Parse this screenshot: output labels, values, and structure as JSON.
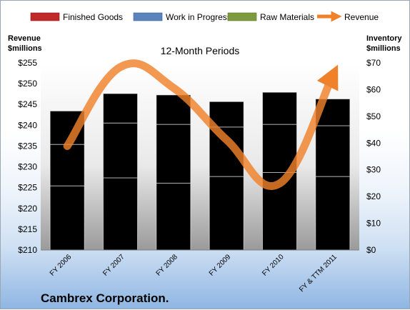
{
  "chart_data": {
    "type": "bar",
    "stacked": true,
    "title": "12-Month Periods",
    "company": "Cambrex Corporation.",
    "categories": [
      "FY 2006",
      "FY 2007",
      "FY 2008",
      "FY 2009",
      "FY 2010",
      "FY & TTM 2011"
    ],
    "left_axis": {
      "label_line1": "Revenue",
      "label_line2": "$millions",
      "range": [
        210,
        255
      ],
      "ticks": [
        "$210",
        "$215",
        "$220",
        "$225",
        "$230",
        "$235",
        "$240",
        "$245",
        "$250",
        "$255"
      ]
    },
    "right_axis": {
      "label_line1": "Inventory",
      "label_line2": "$millions",
      "range": [
        0,
        70
      ],
      "ticks": [
        "$0",
        "$10",
        "$20",
        "$30",
        "$40",
        "$50",
        "$60",
        "$70"
      ]
    },
    "series": [
      {
        "name": "Finished Goods",
        "axis": "right",
        "color": "#c0282a",
        "values": [
          24,
          27,
          25,
          27.5,
          29,
          27.5
        ]
      },
      {
        "name": "Work in Progress",
        "axis": "right",
        "color": "#5b84bd",
        "values": [
          15.5,
          20.5,
          22,
          18.5,
          18,
          19
        ]
      },
      {
        "name": "Raw Materials",
        "axis": "right",
        "color": "#7d9a3e",
        "values": [
          12.5,
          11,
          11,
          9.5,
          12,
          10
        ]
      },
      {
        "name": "Revenue",
        "axis": "left",
        "color": "#f0812b",
        "type": "line",
        "smooth": true,
        "values": [
          235,
          254,
          249,
          236.5,
          226,
          252
        ]
      }
    ],
    "legend": "top",
    "grid": false
  }
}
